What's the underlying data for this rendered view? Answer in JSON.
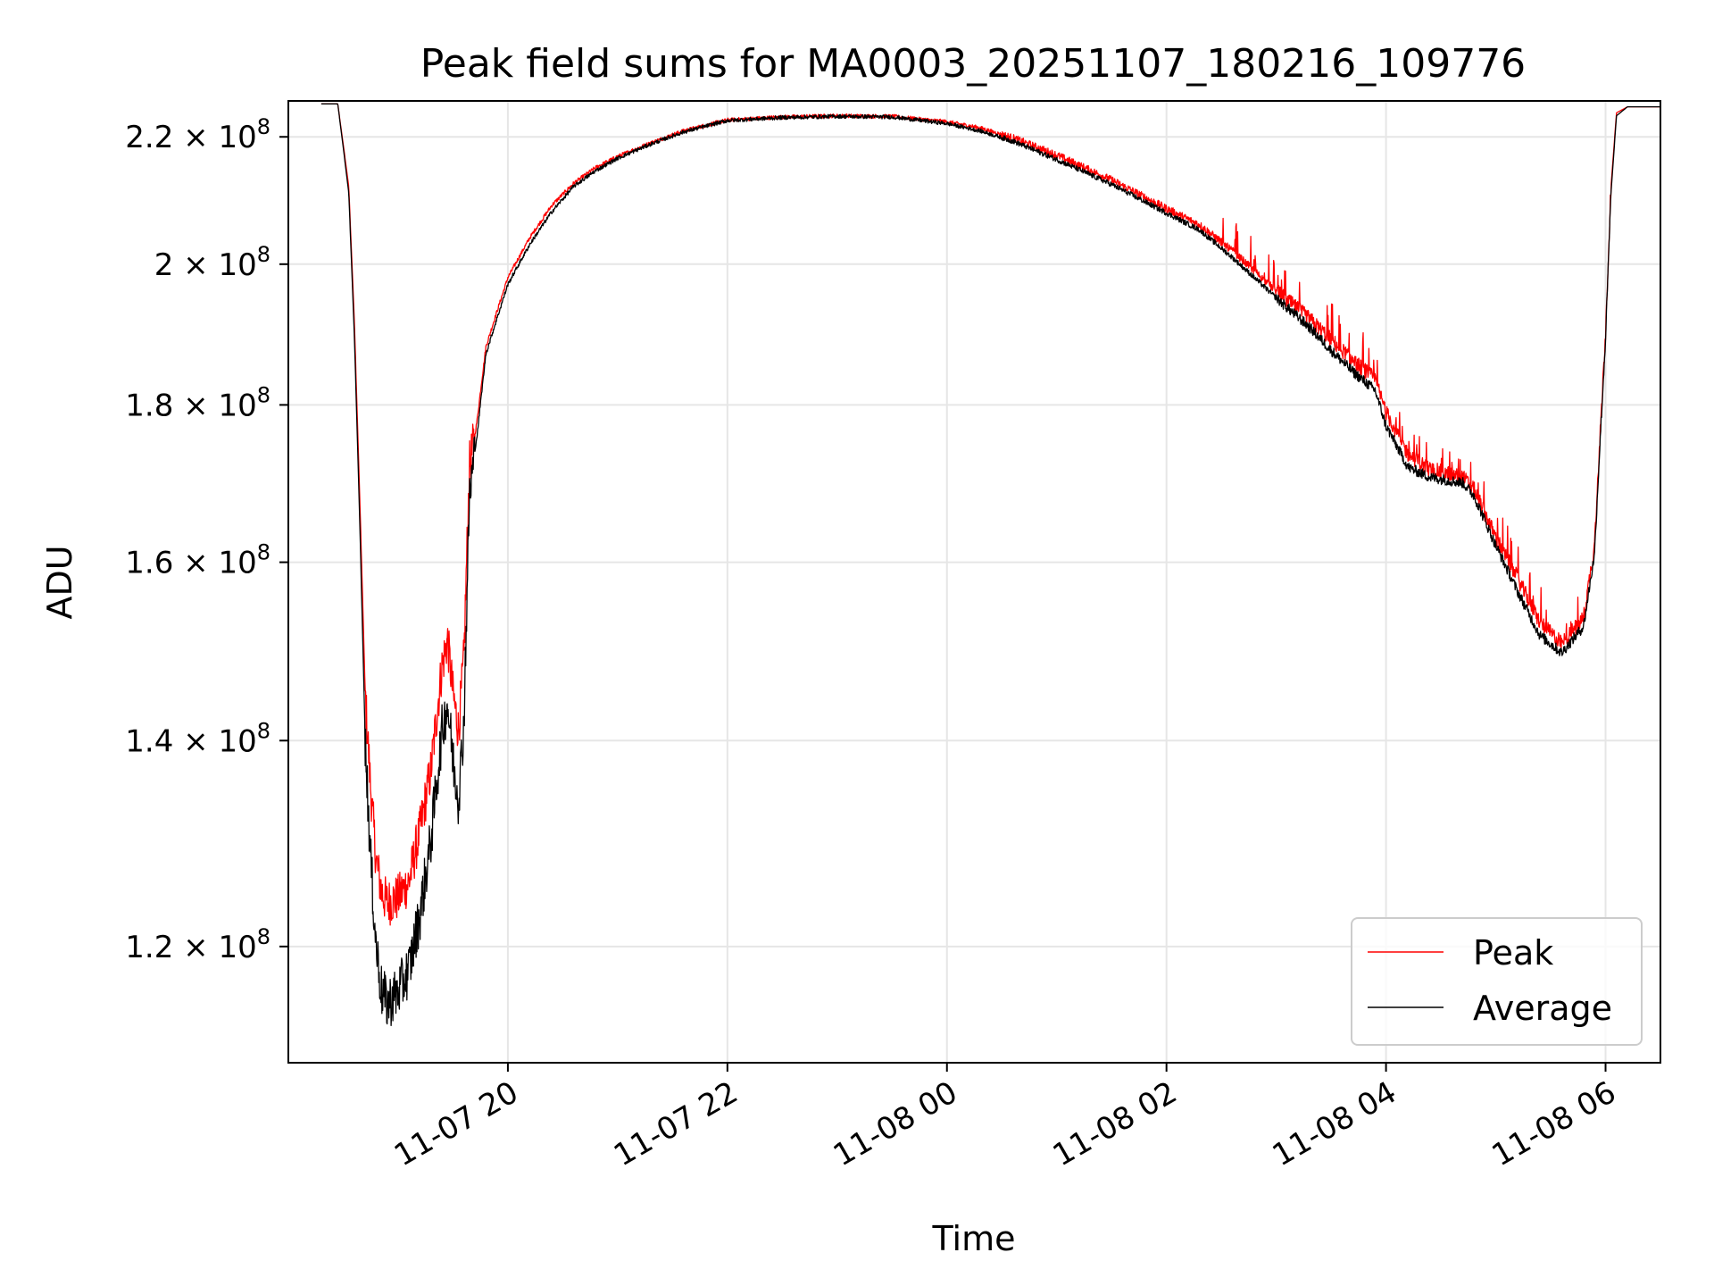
{
  "chart_data": {
    "type": "line",
    "title": "Peak field sums for MA0003_20251107_180216_109776",
    "xlabel": "Time",
    "ylabel": "ADU",
    "y_scale": "log",
    "grid": true,
    "x_unit": "hours since 11-07 18:00",
    "xlim": [
      18.0,
      30.5
    ],
    "ylim": [
      110000000,
      226000000
    ],
    "x_ticks": [
      {
        "value": 20,
        "label": "11-07 20"
      },
      {
        "value": 22,
        "label": "11-07 22"
      },
      {
        "value": 24,
        "label": "11-08 00"
      },
      {
        "value": 26,
        "label": "11-08 02"
      },
      {
        "value": 28,
        "label": "11-08 04"
      },
      {
        "value": 30,
        "label": "11-08 06"
      }
    ],
    "y_ticks": [
      {
        "value": 120000000,
        "mantissa": "1.2",
        "exp": "8"
      },
      {
        "value": 140000000,
        "mantissa": "1.4",
        "exp": "8"
      },
      {
        "value": 160000000,
        "mantissa": "1.6",
        "exp": "8"
      },
      {
        "value": 180000000,
        "mantissa": "1.8",
        "exp": "8"
      },
      {
        "value": 200000000,
        "mantissa": "2",
        "exp": "8"
      },
      {
        "value": 220000000,
        "mantissa": "2.2",
        "exp": "8"
      }
    ],
    "legend": {
      "position": "lower-right",
      "entries": [
        "Peak",
        "Average"
      ]
    },
    "series": [
      {
        "name": "Peak",
        "color": "#ff0000",
        "x": [
          18.3,
          18.45,
          18.55,
          18.6,
          18.65,
          18.7,
          18.75,
          18.8,
          18.85,
          18.9,
          19.0,
          19.1,
          19.2,
          19.3,
          19.4,
          19.45,
          19.5,
          19.55,
          19.6,
          19.65,
          19.7,
          19.72,
          19.8,
          19.9,
          20.0,
          20.2,
          20.4,
          20.6,
          20.8,
          21.0,
          21.3,
          21.6,
          22.0,
          22.5,
          23.0,
          23.5,
          24.0,
          24.3,
          24.6,
          25.0,
          25.5,
          26.0,
          26.3,
          26.6,
          27.0,
          27.3,
          27.5,
          27.7,
          27.9,
          28.0,
          28.2,
          28.4,
          28.7,
          28.8,
          29.0,
          29.2,
          29.4,
          29.6,
          29.8,
          29.9,
          30.0,
          30.05,
          30.1,
          30.2,
          30.5
        ],
        "y": [
          225500000,
          225500000,
          212000000,
          192000000,
          168000000,
          145000000,
          135000000,
          128000000,
          125000000,
          124000000,
          124500000,
          126000000,
          131000000,
          137000000,
          148000000,
          151000000,
          145000000,
          141000000,
          149000000,
          172000000,
          176000000,
          178000000,
          188000000,
          193000000,
          198000000,
          204000000,
          209000000,
          212500000,
          215000000,
          216800000,
          219000000,
          221000000,
          222800000,
          223300000,
          223500000,
          223400000,
          222500000,
          221500000,
          219800000,
          217000000,
          213000000,
          208500000,
          206000000,
          202000000,
          196000000,
          192000000,
          189000000,
          186000000,
          183500000,
          179000000,
          173500000,
          171500000,
          170500000,
          169000000,
          163000000,
          158000000,
          153000000,
          150500000,
          153500000,
          162000000,
          190000000,
          212000000,
          224000000,
          225000000,
          225000000
        ]
      },
      {
        "name": "Average",
        "color": "#000000",
        "x": [
          18.3,
          18.45,
          18.55,
          18.6,
          18.65,
          18.7,
          18.75,
          18.8,
          18.85,
          18.9,
          19.0,
          19.1,
          19.2,
          19.3,
          19.4,
          19.45,
          19.5,
          19.55,
          19.6,
          19.65,
          19.7,
          19.72,
          19.8,
          19.9,
          20.0,
          20.2,
          20.4,
          20.6,
          20.8,
          21.0,
          21.3,
          21.6,
          22.0,
          22.5,
          23.0,
          23.5,
          24.0,
          24.3,
          24.6,
          25.0,
          25.5,
          26.0,
          26.3,
          26.6,
          27.0,
          27.3,
          27.5,
          27.7,
          27.9,
          28.0,
          28.2,
          28.4,
          28.7,
          28.8,
          29.0,
          29.2,
          29.4,
          29.6,
          29.8,
          29.9,
          30.0,
          30.05,
          30.1,
          30.2,
          30.5
        ],
        "y": [
          225500000,
          225500000,
          211000000,
          190000000,
          165000000,
          140000000,
          128000000,
          120000000,
          116000000,
          115000000,
          116000000,
          118000000,
          123000000,
          130000000,
          141000000,
          144000000,
          138000000,
          134000000,
          142000000,
          168000000,
          174000000,
          176000000,
          187000000,
          192000000,
          197000000,
          203000000,
          208000000,
          212000000,
          214500000,
          216500000,
          218800000,
          220800000,
          222700000,
          223200000,
          223400000,
          223300000,
          222200000,
          221000000,
          219300000,
          216300000,
          212300000,
          207800000,
          205200000,
          201000000,
          195000000,
          190800000,
          187500000,
          184500000,
          182000000,
          177200000,
          171800000,
          170500000,
          169800000,
          168200000,
          162000000,
          156500000,
          151500000,
          149500000,
          152500000,
          161000000,
          189000000,
          211000000,
          223500000,
          225000000,
          225000000
        ]
      }
    ]
  }
}
